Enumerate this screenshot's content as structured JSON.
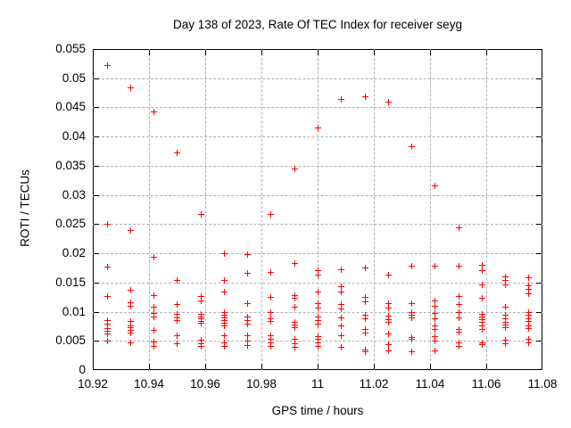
{
  "chart_data": {
    "type": "scatter",
    "title": "Day 138 of 2023, Rate Of TEC Index for receiver seyg",
    "xlabel": "GPS time / hours",
    "ylabel": "ROTI / TECUs",
    "xlim": [
      10.92,
      11.08
    ],
    "ylim": [
      0,
      0.055
    ],
    "xticks": [
      10.92,
      10.94,
      10.96,
      10.98,
      11,
      11.02,
      11.04,
      11.06,
      11.08
    ],
    "xtick_labels": [
      "10.92",
      "10.94",
      "10.96",
      "10.98",
      "11",
      "11.02",
      "11.04",
      "11.06",
      "11.08"
    ],
    "yticks": [
      0,
      0.005,
      0.01,
      0.015,
      0.02,
      0.025,
      0.03,
      0.035,
      0.04,
      0.045,
      0.05,
      0.055
    ],
    "ytick_labels": [
      "0",
      "0.005",
      "0.01",
      "0.015",
      "0.02",
      "0.025",
      "0.03",
      "0.035",
      "0.04",
      "0.045",
      "0.05",
      "0.055"
    ],
    "grid": true,
    "legend": "none",
    "marker": {
      "symbol": "plus",
      "color": "#ff0000",
      "size": 7
    },
    "series": [
      {
        "name": "ROTI",
        "columns": [
          {
            "t": 10.925,
            "values": [
              0.0523,
              0.0251,
              0.0177,
              0.0127,
              0.0085,
              0.0079,
              0.0072,
              0.0067,
              0.0062,
              0.0051
            ]
          },
          {
            "t": 10.9333,
            "values": [
              0.0484,
              0.024,
              0.0137,
              0.0116,
              0.011,
              0.0084,
              0.0077,
              0.0073,
              0.0069,
              0.0064,
              0.0048
            ]
          },
          {
            "t": 10.9417,
            "values": [
              0.0443,
              0.0194,
              0.0129,
              0.0108,
              0.0098,
              0.0092,
              0.0069,
              0.0049,
              0.0042
            ]
          },
          {
            "t": 10.95,
            "values": [
              0.0373,
              0.0154,
              0.0113,
              0.0096,
              0.009,
              0.0085,
              0.0059,
              0.0046
            ]
          },
          {
            "t": 10.9583,
            "values": [
              0.0267,
              0.0127,
              0.0119,
              0.0097,
              0.0092,
              0.0088,
              0.0084,
              0.0081,
              0.0052,
              0.0046,
              0.0041
            ]
          },
          {
            "t": 10.9667,
            "values": [
              0.02,
              0.0155,
              0.0134,
              0.01,
              0.0095,
              0.009,
              0.0086,
              0.0081,
              0.0077,
              0.0059,
              0.0048,
              0.0042
            ]
          },
          {
            "t": 10.975,
            "values": [
              0.0198,
              0.0166,
              0.0114,
              0.0092,
              0.0086,
              0.008,
              0.0059,
              0.0051,
              0.0043
            ]
          },
          {
            "t": 10.9833,
            "values": [
              0.0267,
              0.0168,
              0.0125,
              0.01,
              0.0089,
              0.0084,
              0.0059,
              0.0053,
              0.0048,
              0.0042
            ]
          },
          {
            "t": 10.9917,
            "values": [
              0.0345,
              0.0183,
              0.0128,
              0.0124,
              0.0108,
              0.0083,
              0.0078,
              0.0073,
              0.0053,
              0.0046,
              0.0039
            ]
          },
          {
            "t": 11.0,
            "values": [
              0.0416,
              0.0171,
              0.0163,
              0.0134,
              0.0114,
              0.0107,
              0.0092,
              0.0085,
              0.008,
              0.0058,
              0.0054,
              0.0047,
              0.0041
            ]
          },
          {
            "t": 11.0083,
            "values": [
              0.0464,
              0.0172,
              0.0144,
              0.0134,
              0.0113,
              0.0105,
              0.009,
              0.0077,
              0.0059,
              0.0039
            ]
          },
          {
            "t": 11.0167,
            "values": [
              0.0469,
              0.0176,
              0.0126,
              0.0117,
              0.0094,
              0.0088,
              0.007,
              0.0064,
              0.0035,
              0.0032
            ]
          },
          {
            "t": 11.025,
            "values": [
              0.046,
              0.0164,
              0.0115,
              0.0107,
              0.0093,
              0.0087,
              0.0082,
              0.0063,
              0.0045,
              0.0033
            ]
          },
          {
            "t": 11.0333,
            "values": [
              0.0383,
              0.0178,
              0.0114,
              0.01,
              0.0094,
              0.009,
              0.0056,
              0.0053,
              0.0032
            ]
          },
          {
            "t": 11.0417,
            "values": [
              0.0316,
              0.0178,
              0.0119,
              0.011,
              0.0098,
              0.0088,
              0.0077,
              0.007,
              0.0058,
              0.0051,
              0.0034
            ]
          },
          {
            "t": 11.05,
            "values": [
              0.0244,
              0.0178,
              0.0127,
              0.0113,
              0.0099,
              0.009,
              0.0071,
              0.0065,
              0.0048,
              0.0041
            ]
          },
          {
            "t": 11.0583,
            "values": [
              0.018,
              0.0171,
              0.0146,
              0.0124,
              0.0097,
              0.0092,
              0.0087,
              0.0082,
              0.0076,
              0.0071,
              0.0048,
              0.0044
            ]
          },
          {
            "t": 11.0667,
            "values": [
              0.016,
              0.0154,
              0.0146,
              0.0109,
              0.0094,
              0.0088,
              0.0083,
              0.0078,
              0.0073,
              0.0052,
              0.0046
            ]
          },
          {
            "t": 11.075,
            "values": [
              0.0159,
              0.0145,
              0.0139,
              0.0132,
              0.01,
              0.0094,
              0.0089,
              0.0084,
              0.0077,
              0.0072,
              0.0053,
              0.0047
            ]
          }
        ]
      }
    ]
  },
  "colors": {
    "background": "#ffffff",
    "text": "#000000",
    "marker": "#ff0000",
    "grid": "#b0b0b0",
    "border": "#000000"
  }
}
